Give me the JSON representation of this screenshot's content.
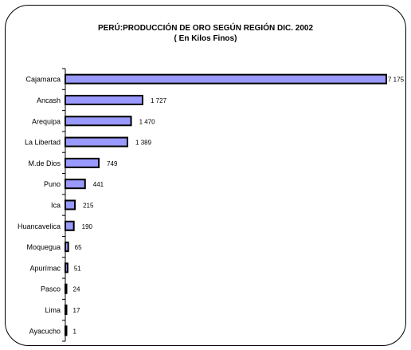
{
  "chart_data": {
    "type": "bar",
    "orientation": "horizontal",
    "title": "PERÚ:PRODUCCIÓN DE ORO SEGÚN REGIÓN DIC. 2002",
    "subtitle": "( En Kilos Finos)",
    "categories": [
      "Cajamarca",
      "Ancash",
      "Arequipa",
      "La Libertad",
      "M.de Dios",
      "Puno",
      "Ica",
      "Huancavelica",
      "Moquegua",
      "Apurímac",
      "Pasco",
      "Lima",
      "Ayacucho"
    ],
    "values": [
      7175,
      1727,
      1470,
      1389,
      749,
      441,
      215,
      190,
      65,
      51,
      24,
      17,
      1
    ],
    "value_labels": [
      "7 175",
      "1 727",
      "1 470",
      "1 389",
      "749",
      "441",
      "215",
      "190",
      "65",
      "51",
      "24",
      "17",
      "1"
    ],
    "xlim": [
      0,
      7175
    ],
    "bar_color": "#9999ff",
    "bar_edge_color": "#000000",
    "grid": false,
    "legend": "none"
  }
}
